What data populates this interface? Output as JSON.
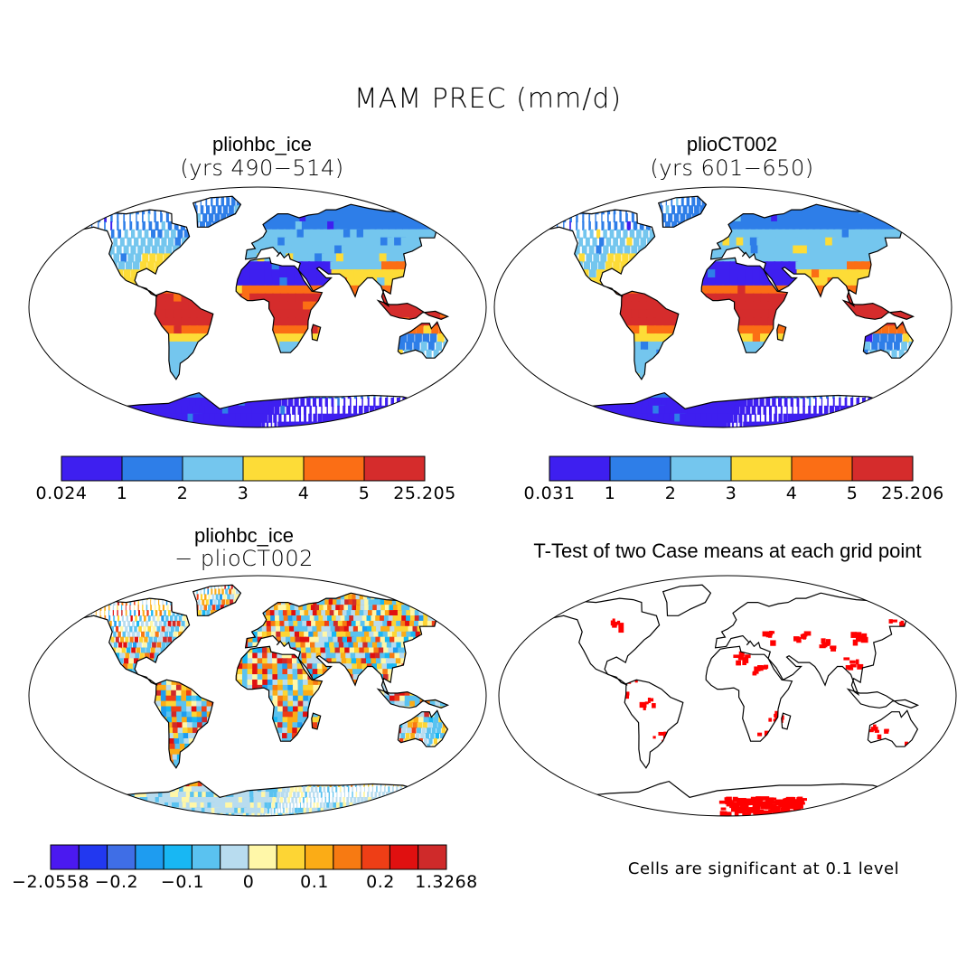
{
  "figure": {
    "title": "MAM PREC (mm/d)",
    "note": "Cells are significant at 0.1 level"
  },
  "panels": [
    {
      "id": "tl",
      "title": "pliohbc_ice",
      "subtitle": "(yrs 490−514)",
      "colorbar": {
        "colors": [
          "#3e1ff0",
          "#2e7ee8",
          "#74c6ee",
          "#fddc37",
          "#fb6e15",
          "#d52c2c"
        ],
        "labels": [
          "0.024",
          "1",
          "2",
          "3",
          "4",
          "5",
          "25.205"
        ]
      }
    },
    {
      "id": "tr",
      "title": "plioCT002",
      "subtitle": "(yrs 601−650)",
      "colorbar": {
        "colors": [
          "#3e1ff0",
          "#2e7ee8",
          "#74c6ee",
          "#fddc37",
          "#fb6e15",
          "#d52c2c"
        ],
        "labels": [
          "0.031",
          "1",
          "2",
          "3",
          "4",
          "5",
          "25.206"
        ]
      }
    },
    {
      "id": "bl",
      "title": "pliohbc_ice",
      "subtitle": "− plioCT002",
      "colorbar": {
        "colors": [
          "#4b19f0",
          "#2238f0",
          "#3f6ee6",
          "#1e9cf0",
          "#18b7f3",
          "#5ac2f0",
          "#b8dcef",
          "#fff7a8",
          "#fdd534",
          "#fbac16",
          "#f77a12",
          "#ee3e16",
          "#e01010",
          "#cf2a2a"
        ],
        "labels": [
          "−2.0558",
          "−0.2",
          "−0.1",
          "0",
          "0.1",
          "0.2",
          "1.3268"
        ]
      }
    },
    {
      "id": "br",
      "title": "T-Test of two Case means at each grid point"
    }
  ]
}
